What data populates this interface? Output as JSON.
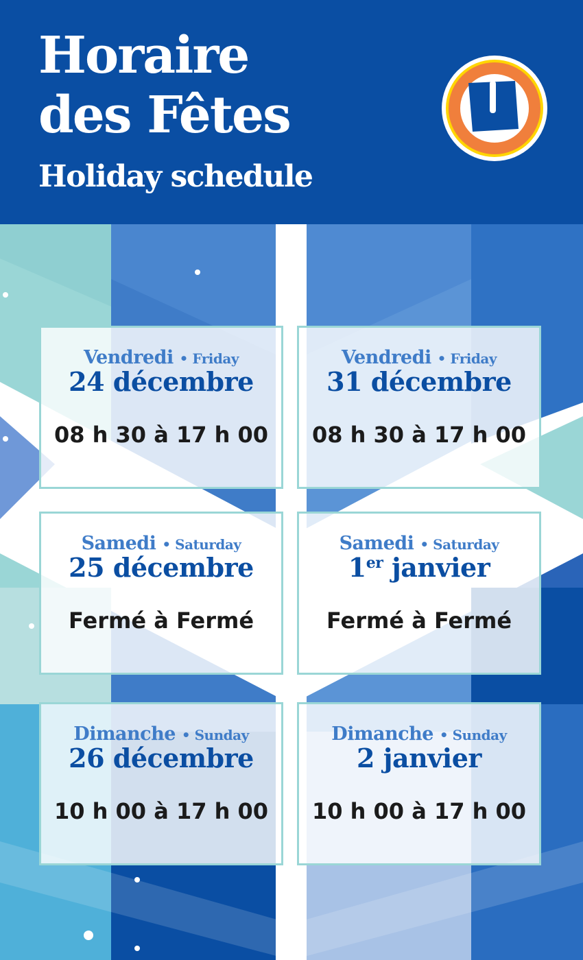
{
  "header": {
    "title_line1": "Horaire",
    "title_line2": "des Fêtes",
    "subtitle": "Holiday schedule",
    "logo_letter": "U"
  },
  "colors": {
    "brand_blue": "#0a4ea3",
    "card_border": "#9ad6d6",
    "day_blue": "#3f7cc8",
    "logo_orange": "#f07f3c",
    "logo_yellow": "#ffd500"
  },
  "schedule": [
    {
      "day_fr": "Vendredi",
      "day_en": "Friday",
      "date": "24 décembre",
      "date_sup": "",
      "hours": "08 h 30 à 17 h 00"
    },
    {
      "day_fr": "Vendredi",
      "day_en": "Friday",
      "date": "31 décembre",
      "date_sup": "",
      "hours": "08 h 30 à 17 h 00"
    },
    {
      "day_fr": "Samedi",
      "day_en": "Saturday",
      "date": "25 décembre",
      "date_sup": "",
      "hours": "Fermé à Fermé"
    },
    {
      "day_fr": "Samedi",
      "day_en": "Saturday",
      "date": "1",
      "date_sup": "er",
      "date_rest": " janvier",
      "hours": "Fermé à Fermé"
    },
    {
      "day_fr": "Dimanche",
      "day_en": "Sunday",
      "date": "26 décembre",
      "date_sup": "",
      "hours": "10 h 00 à 17 h 00"
    },
    {
      "day_fr": "Dimanche",
      "day_en": "Sunday",
      "date": "2 janvier",
      "date_sup": "",
      "hours": "10 h 00 à 17 h 00"
    }
  ],
  "separator": "•"
}
